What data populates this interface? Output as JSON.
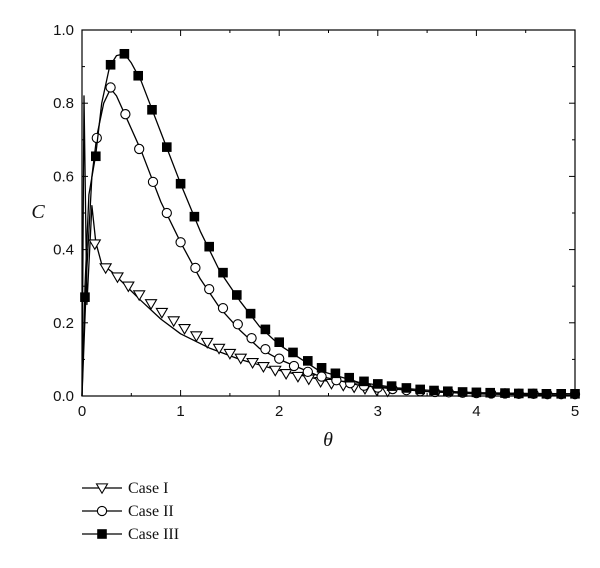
{
  "chart_data": {
    "type": "line",
    "title": "",
    "xlabel": "θ",
    "ylabel": "C",
    "xlim": [
      0,
      5
    ],
    "ylim": [
      0,
      1.0
    ],
    "xticks": [
      "0",
      "1",
      "2",
      "3",
      "4",
      "5"
    ],
    "yticks": [
      "0.0",
      "0.2",
      "0.4",
      "0.6",
      "0.8",
      "1.0"
    ],
    "grid": false,
    "legend_position": "below-left",
    "series": [
      {
        "name": "Case I",
        "marker": "triangle-down-open",
        "curve": [
          [
            0,
            0
          ],
          [
            0.02,
            0.82
          ],
          [
            0.05,
            0.25
          ],
          [
            0.1,
            0.52
          ],
          [
            0.14,
            0.42
          ],
          [
            0.2,
            0.36
          ],
          [
            0.3,
            0.34
          ],
          [
            0.45,
            0.3
          ],
          [
            0.6,
            0.26
          ],
          [
            0.8,
            0.21
          ],
          [
            1.0,
            0.17
          ],
          [
            1.3,
            0.13
          ],
          [
            1.6,
            0.1
          ],
          [
            2.0,
            0.07
          ],
          [
            2.5,
            0.04
          ],
          [
            3.0,
            0.025
          ],
          [
            3.5,
            0.012
          ],
          [
            4.0,
            0.006
          ],
          [
            4.5,
            0.003
          ],
          [
            5.0,
            0.001
          ]
        ],
        "points": [
          [
            0.13,
            0.415
          ],
          [
            0.24,
            0.35
          ],
          [
            0.36,
            0.325
          ],
          [
            0.47,
            0.3
          ],
          [
            0.58,
            0.276
          ],
          [
            0.7,
            0.252
          ],
          [
            0.81,
            0.228
          ],
          [
            0.93,
            0.205
          ],
          [
            1.04,
            0.184
          ],
          [
            1.16,
            0.164
          ],
          [
            1.27,
            0.146
          ],
          [
            1.39,
            0.13
          ],
          [
            1.5,
            0.116
          ],
          [
            1.61,
            0.103
          ],
          [
            1.73,
            0.091
          ],
          [
            1.84,
            0.08
          ],
          [
            1.96,
            0.07
          ],
          [
            2.07,
            0.061
          ],
          [
            2.19,
            0.053
          ],
          [
            2.3,
            0.046
          ],
          [
            2.42,
            0.039
          ],
          [
            2.53,
            0.034
          ],
          [
            2.65,
            0.029
          ],
          [
            2.76,
            0.024
          ],
          [
            2.87,
            0.02
          ],
          [
            2.99,
            0.016
          ],
          [
            3.1,
            0.013
          ]
        ]
      },
      {
        "name": "Case II",
        "marker": "circle-open",
        "curve": [
          [
            0,
            0
          ],
          [
            0.05,
            0.35
          ],
          [
            0.1,
            0.6
          ],
          [
            0.15,
            0.71
          ],
          [
            0.22,
            0.8
          ],
          [
            0.29,
            0.84
          ],
          [
            0.35,
            0.82
          ],
          [
            0.45,
            0.76
          ],
          [
            0.6,
            0.67
          ],
          [
            0.8,
            0.53
          ],
          [
            1.0,
            0.42
          ],
          [
            1.2,
            0.32
          ],
          [
            1.4,
            0.24
          ],
          [
            1.6,
            0.18
          ],
          [
            1.8,
            0.13
          ],
          [
            2.0,
            0.1
          ],
          [
            2.4,
            0.055
          ],
          [
            2.8,
            0.03
          ],
          [
            3.2,
            0.018
          ],
          [
            3.6,
            0.011
          ],
          [
            4.0,
            0.008
          ],
          [
            4.5,
            0.006
          ],
          [
            5.0,
            0.005
          ]
        ],
        "points": [
          [
            0.15,
            0.705
          ],
          [
            0.29,
            0.843
          ],
          [
            0.44,
            0.77
          ],
          [
            0.58,
            0.675
          ],
          [
            0.72,
            0.585
          ],
          [
            0.86,
            0.5
          ],
          [
            1.0,
            0.42
          ],
          [
            1.15,
            0.35
          ],
          [
            1.29,
            0.292
          ],
          [
            1.43,
            0.24
          ],
          [
            1.58,
            0.196
          ],
          [
            1.72,
            0.158
          ],
          [
            1.86,
            0.128
          ],
          [
            2.0,
            0.102
          ],
          [
            2.15,
            0.082
          ],
          [
            2.29,
            0.066
          ],
          [
            2.43,
            0.053
          ],
          [
            2.58,
            0.043
          ],
          [
            2.72,
            0.035
          ],
          [
            2.86,
            0.028
          ],
          [
            3.0,
            0.023
          ],
          [
            3.15,
            0.019
          ],
          [
            3.29,
            0.016
          ],
          [
            3.43,
            0.013
          ],
          [
            3.58,
            0.011
          ],
          [
            3.72,
            0.01
          ],
          [
            3.86,
            0.009
          ],
          [
            4.0,
            0.008
          ],
          [
            4.15,
            0.007
          ],
          [
            4.29,
            0.007
          ],
          [
            4.43,
            0.006
          ],
          [
            4.58,
            0.006
          ],
          [
            4.72,
            0.005
          ],
          [
            4.86,
            0.005
          ],
          [
            5.0,
            0.005
          ]
        ]
      },
      {
        "name": "Case III",
        "marker": "square-filled",
        "curve": [
          [
            0,
            0
          ],
          [
            0.03,
            0.3
          ],
          [
            0.07,
            0.55
          ],
          [
            0.14,
            0.66
          ],
          [
            0.2,
            0.8
          ],
          [
            0.28,
            0.9
          ],
          [
            0.35,
            0.93
          ],
          [
            0.43,
            0.935
          ],
          [
            0.5,
            0.91
          ],
          [
            0.6,
            0.86
          ],
          [
            0.8,
            0.72
          ],
          [
            1.0,
            0.58
          ],
          [
            1.2,
            0.45
          ],
          [
            1.4,
            0.34
          ],
          [
            1.6,
            0.26
          ],
          [
            1.8,
            0.19
          ],
          [
            2.0,
            0.14
          ],
          [
            2.4,
            0.07
          ],
          [
            2.8,
            0.038
          ],
          [
            3.2,
            0.022
          ],
          [
            3.6,
            0.014
          ],
          [
            4.0,
            0.009
          ],
          [
            4.5,
            0.007
          ],
          [
            5.0,
            0.006
          ]
        ],
        "points": [
          [
            0.03,
            0.27
          ],
          [
            0.14,
            0.655
          ],
          [
            0.29,
            0.905
          ],
          [
            0.43,
            0.935
          ],
          [
            0.57,
            0.875
          ],
          [
            0.71,
            0.782
          ],
          [
            0.86,
            0.68
          ],
          [
            1.0,
            0.58
          ],
          [
            1.14,
            0.49
          ],
          [
            1.29,
            0.408
          ],
          [
            1.43,
            0.337
          ],
          [
            1.57,
            0.276
          ],
          [
            1.71,
            0.225
          ],
          [
            1.86,
            0.182
          ],
          [
            2.0,
            0.147
          ],
          [
            2.14,
            0.119
          ],
          [
            2.29,
            0.096
          ],
          [
            2.43,
            0.077
          ],
          [
            2.57,
            0.062
          ],
          [
            2.71,
            0.05
          ],
          [
            2.86,
            0.04
          ],
          [
            3.0,
            0.033
          ],
          [
            3.14,
            0.027
          ],
          [
            3.29,
            0.022
          ],
          [
            3.43,
            0.018
          ],
          [
            3.57,
            0.015
          ],
          [
            3.71,
            0.013
          ],
          [
            3.86,
            0.011
          ],
          [
            4.0,
            0.01
          ],
          [
            4.14,
            0.009
          ],
          [
            4.29,
            0.008
          ],
          [
            4.43,
            0.007
          ],
          [
            4.57,
            0.007
          ],
          [
            4.71,
            0.006
          ],
          [
            4.86,
            0.006
          ],
          [
            5.0,
            0.006
          ]
        ]
      }
    ]
  }
}
